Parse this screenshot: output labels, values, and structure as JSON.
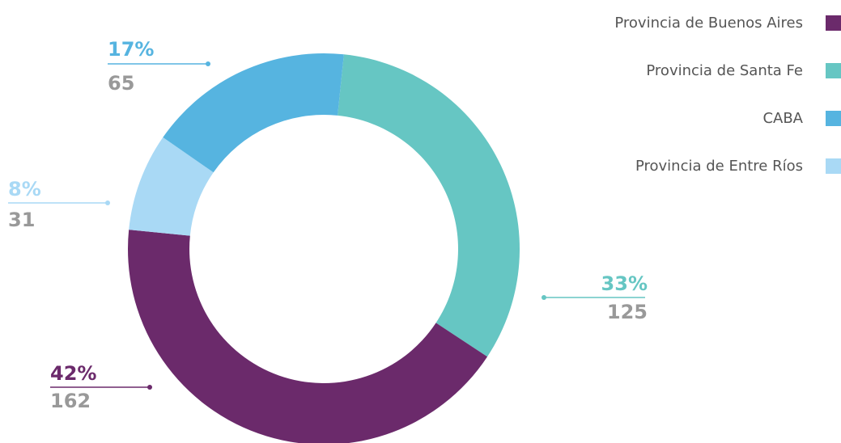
{
  "chart_data": {
    "type": "donut",
    "categories": [
      "Provincia de Buenos Aires",
      "Provincia de Santa Fe",
      "CABA",
      "Provincia de Entre Ríos"
    ],
    "values": [
      162,
      125,
      65,
      31
    ],
    "percent_labels": [
      "42%",
      "33%",
      "17%",
      "8%"
    ],
    "colors": [
      "#6b2a6b",
      "#66c6c3",
      "#56b4e0",
      "#a9d9f5"
    ],
    "legend": "top-right"
  }
}
